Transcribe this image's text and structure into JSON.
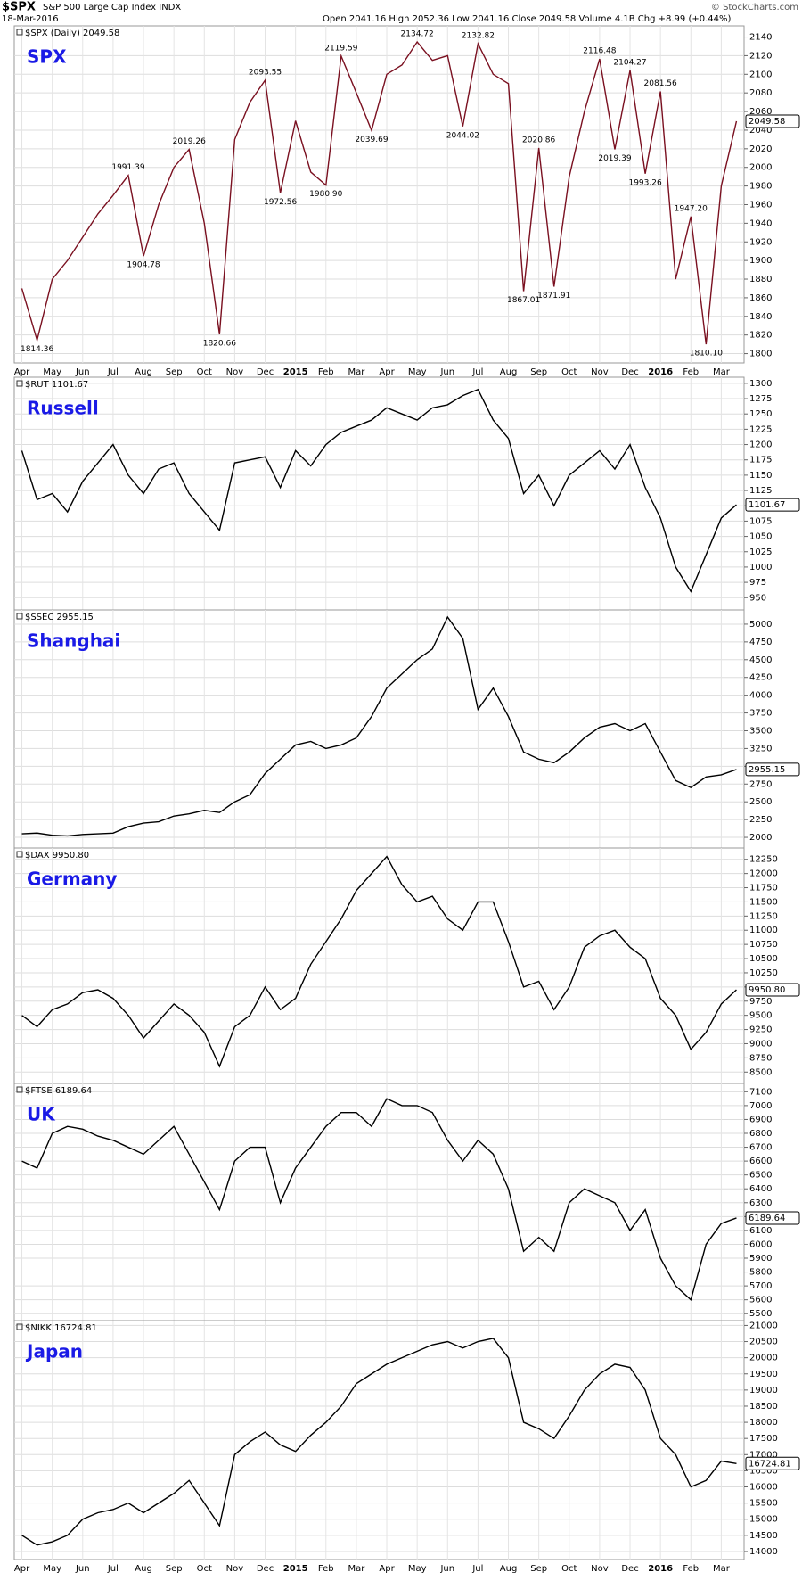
{
  "header": {
    "symbol": "$SPX",
    "name": "S&P 500 Large Cap Index INDX",
    "date": "18-Mar-2016",
    "quote": "Open 2041.16  High 2052.36  Low 2041.16  Close 2049.58  Volume 4.1B  Chg +8.99 (+0.44%)",
    "source": "© StockCharts.com"
  },
  "chart_data": [
    {
      "type": "line",
      "title": "$SPX (Daily) 2049.58",
      "label": "SPX",
      "color": "#7a1020",
      "categories": [
        "Apr",
        null,
        "May",
        null,
        "Jun",
        null,
        "Jul",
        null,
        "Aug",
        null,
        "Sep",
        null,
        "Oct",
        null,
        "Nov",
        null,
        "Dec",
        null,
        "2015",
        null,
        "Feb",
        null,
        "Mar",
        null,
        "Apr",
        null,
        "May",
        null,
        "Jun",
        null,
        "Jul",
        null,
        "Aug",
        null,
        "Sep",
        null,
        "Oct",
        null,
        "Nov",
        null,
        "Dec",
        null,
        "2016",
        null,
        "Feb",
        null,
        "Mar",
        null
      ],
      "values": [
        1870,
        1814.36,
        1880,
        1900,
        1925,
        1950,
        1970,
        1991.39,
        1904.78,
        1960,
        2000,
        2019.26,
        1940,
        1820.66,
        2030,
        2070,
        2093.55,
        1972.56,
        2050,
        1995,
        1980.9,
        2119.59,
        2080,
        2039.69,
        2100,
        2110,
        2134.72,
        2115,
        2120,
        2044.02,
        2132.82,
        2100,
        2090,
        1867.01,
        2020.86,
        1871.91,
        1990,
        2060,
        2116.48,
        2019.39,
        2104.27,
        1993.26,
        2081.56,
        1880,
        1947.2,
        1810.1,
        1980,
        2049.58
      ],
      "value_labels": [
        null,
        "1814.36",
        null,
        null,
        null,
        null,
        null,
        "1991.39",
        "1904.78",
        null,
        null,
        "2019.26",
        null,
        "1820.66",
        null,
        null,
        "2093.55",
        "1972.56",
        null,
        null,
        "1980.90",
        "2119.59",
        null,
        "2039.69",
        null,
        null,
        "2134.72",
        null,
        null,
        "2044.02",
        "2132.82",
        null,
        null,
        "1867.01",
        "2020.86",
        "1871.91",
        null,
        null,
        "2116.48",
        "2019.39",
        "2104.27",
        "1993.26",
        "2081.56",
        null,
        "1947.20",
        "1810.10",
        null,
        "2049.58"
      ],
      "ylim": [
        1790,
        2152
      ],
      "yticks": [
        1800,
        1820,
        1840,
        1860,
        1880,
        1900,
        1920,
        1940,
        1960,
        1980,
        2000,
        2020,
        2040,
        2060,
        2080,
        2100,
        2120,
        2140
      ],
      "grid": true
    },
    {
      "type": "line",
      "title": "$RUT 1101.67",
      "label": "Russell",
      "color": "#000000",
      "values": [
        1190,
        1110,
        1120,
        1090,
        1140,
        1170,
        1200,
        1150,
        1120,
        1160,
        1170,
        1120,
        1090,
        1060,
        1170,
        1175,
        1180,
        1130,
        1190,
        1165,
        1200,
        1220,
        1230,
        1240,
        1260,
        1250,
        1240,
        1260,
        1265,
        1280,
        1290,
        1240,
        1210,
        1120,
        1150,
        1100,
        1150,
        1170,
        1190,
        1160,
        1200,
        1130,
        1080,
        1000,
        960,
        1020,
        1080,
        1101.67
      ],
      "value_labels": [
        null,
        null,
        null,
        null,
        null,
        null,
        null,
        null,
        null,
        null,
        null,
        null,
        null,
        null,
        null,
        null,
        null,
        null,
        null,
        null,
        null,
        null,
        null,
        null,
        null,
        null,
        null,
        null,
        null,
        null,
        null,
        null,
        null,
        null,
        null,
        null,
        null,
        null,
        null,
        null,
        null,
        null,
        null,
        null,
        null,
        null,
        null,
        "1101.67"
      ],
      "ylim": [
        930,
        1310
      ],
      "yticks": [
        950,
        975,
        1000,
        1025,
        1050,
        1075,
        1100,
        1125,
        1150,
        1175,
        1200,
        1225,
        1250,
        1275,
        1300
      ],
      "grid": true
    },
    {
      "type": "line",
      "title": "$SSEC 2955.15",
      "label": "Shanghai",
      "color": "#000000",
      "values": [
        2050,
        2060,
        2030,
        2020,
        2040,
        2050,
        2060,
        2150,
        2200,
        2220,
        2300,
        2330,
        2380,
        2350,
        2500,
        2600,
        2900,
        3100,
        3300,
        3350,
        3250,
        3300,
        3400,
        3700,
        4100,
        4300,
        4500,
        4650,
        5100,
        4800,
        3800,
        4100,
        3700,
        3200,
        3100,
        3050,
        3200,
        3400,
        3550,
        3600,
        3500,
        3600,
        3200,
        2800,
        2700,
        2850,
        2880,
        2955.15
      ],
      "value_labels": [
        null,
        null,
        null,
        null,
        null,
        null,
        null,
        null,
        null,
        null,
        null,
        null,
        null,
        null,
        null,
        null,
        null,
        null,
        null,
        null,
        null,
        null,
        null,
        null,
        null,
        null,
        null,
        null,
        null,
        null,
        null,
        null,
        null,
        null,
        null,
        null,
        null,
        null,
        null,
        null,
        null,
        null,
        null,
        null,
        null,
        null,
        null,
        "2955.15"
      ],
      "ylim": [
        1850,
        5200
      ],
      "yticks": [
        2000,
        2250,
        2500,
        2750,
        3000,
        3250,
        3500,
        3750,
        4000,
        4250,
        4500,
        4750,
        5000
      ],
      "grid": true
    },
    {
      "type": "line",
      "title": "$DAX 9950.80",
      "label": "Germany",
      "color": "#000000",
      "values": [
        9500,
        9300,
        9600,
        9700,
        9900,
        9950,
        9800,
        9500,
        9100,
        9400,
        9700,
        9500,
        9200,
        8600,
        9300,
        9500,
        10000,
        9600,
        9800,
        10400,
        10800,
        11200,
        11700,
        12000,
        12300,
        11800,
        11500,
        11600,
        11200,
        11000,
        11500,
        11500,
        10800,
        10000,
        10100,
        9600,
        10000,
        10700,
        10900,
        11000,
        10700,
        10500,
        9800,
        9500,
        8900,
        9200,
        9700,
        9950.8
      ],
      "value_labels": [
        null,
        null,
        null,
        null,
        null,
        null,
        null,
        null,
        null,
        null,
        null,
        null,
        null,
        null,
        null,
        null,
        null,
        null,
        null,
        null,
        null,
        null,
        null,
        null,
        null,
        null,
        null,
        null,
        null,
        null,
        null,
        null,
        null,
        null,
        null,
        null,
        null,
        null,
        null,
        null,
        null,
        null,
        null,
        null,
        null,
        null,
        null,
        "9950.80"
      ],
      "ylim": [
        8300,
        12450
      ],
      "yticks": [
        8500,
        8750,
        9000,
        9250,
        9500,
        9750,
        10000,
        10250,
        10500,
        10750,
        11000,
        11250,
        11500,
        11750,
        12000,
        12250
      ],
      "grid": true
    },
    {
      "type": "line",
      "title": "$FTSE 6189.64",
      "label": "UK",
      "color": "#000000",
      "values": [
        6600,
        6550,
        6800,
        6850,
        6830,
        6780,
        6750,
        6700,
        6650,
        6750,
        6850,
        6650,
        6450,
        6250,
        6600,
        6700,
        6700,
        6300,
        6550,
        6700,
        6850,
        6950,
        6950,
        6850,
        7050,
        7000,
        7000,
        6950,
        6750,
        6600,
        6750,
        6650,
        6400,
        5950,
        6050,
        5950,
        6300,
        6400,
        6350,
        6300,
        6100,
        6250,
        5900,
        5700,
        5600,
        6000,
        6150,
        6189.64
      ],
      "value_labels": [
        null,
        null,
        null,
        null,
        null,
        null,
        null,
        null,
        null,
        null,
        null,
        null,
        null,
        null,
        null,
        null,
        null,
        null,
        null,
        null,
        null,
        null,
        null,
        null,
        null,
        null,
        null,
        null,
        null,
        null,
        null,
        null,
        null,
        null,
        null,
        null,
        null,
        null,
        null,
        null,
        null,
        null,
        null,
        null,
        null,
        null,
        null,
        "6189.64"
      ],
      "ylim": [
        5450,
        7160
      ],
      "yticks": [
        5500,
        5600,
        5700,
        5800,
        5900,
        6000,
        6100,
        6200,
        6300,
        6400,
        6500,
        6600,
        6700,
        6800,
        6900,
        7000,
        7100
      ],
      "grid": true
    },
    {
      "type": "line",
      "title": "$NIKK 16724.81",
      "label": "Japan",
      "color": "#000000",
      "categories": [
        "Apr",
        null,
        "May",
        null,
        "Jun",
        null,
        "Jul",
        null,
        "Aug",
        null,
        "Sep",
        null,
        "Oct",
        null,
        "Nov",
        null,
        "Dec",
        null,
        "2015",
        null,
        "Feb",
        null,
        "Mar",
        null,
        "Apr",
        null,
        "May",
        null,
        "Jun",
        null,
        "Jul",
        null,
        "Aug",
        null,
        "Sep",
        null,
        "Oct",
        null,
        "Nov",
        null,
        "Dec",
        null,
        "2016",
        null,
        "Feb",
        null,
        "Mar",
        null
      ],
      "values": [
        14500,
        14200,
        14300,
        14500,
        15000,
        15200,
        15300,
        15500,
        15200,
        15500,
        15800,
        16200,
        15500,
        14800,
        17000,
        17400,
        17700,
        17300,
        17100,
        17600,
        18000,
        18500,
        19200,
        19500,
        19800,
        20000,
        20200,
        20400,
        20500,
        20300,
        20500,
        20600,
        20000,
        18000,
        17800,
        17500,
        18200,
        19000,
        19500,
        19800,
        19700,
        19000,
        17500,
        17000,
        16000,
        16200,
        16800,
        16724.81
      ],
      "value_labels": [
        null,
        null,
        null,
        null,
        null,
        null,
        null,
        null,
        null,
        null,
        null,
        null,
        null,
        null,
        null,
        null,
        null,
        null,
        null,
        null,
        null,
        null,
        null,
        null,
        null,
        null,
        null,
        null,
        null,
        null,
        null,
        null,
        null,
        null,
        null,
        null,
        null,
        null,
        null,
        null,
        null,
        null,
        null,
        null,
        null,
        null,
        null,
        "16724.81"
      ],
      "ylim": [
        13750,
        21150
      ],
      "yticks": [
        14000,
        14500,
        15000,
        15500,
        16000,
        16500,
        17000,
        17500,
        18000,
        18500,
        19000,
        19500,
        20000,
        20500,
        21000
      ],
      "grid": true
    }
  ]
}
